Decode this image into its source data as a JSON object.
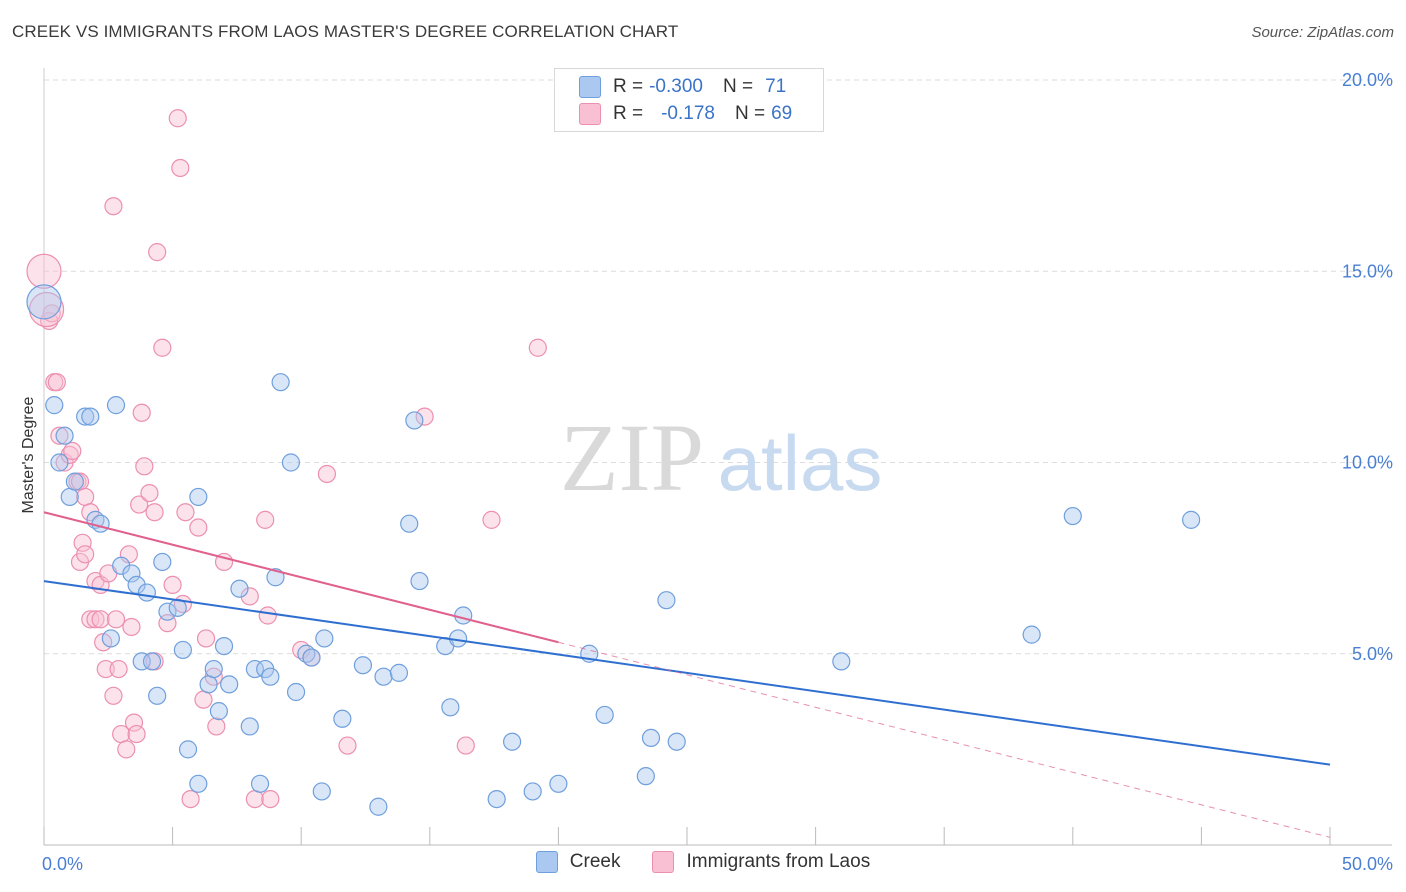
{
  "title": "CREEK VS IMMIGRANTS FROM LAOS MASTER'S DEGREE CORRELATION CHART",
  "source": "Source: ZipAtlas.com",
  "watermark": {
    "zip": "ZIP",
    "atlas": "atlas"
  },
  "legend": {
    "rows": [
      {
        "r_label": "R =",
        "r_value": "-0.300",
        "n_label": "N =",
        "n_value": "71"
      },
      {
        "r_label": "R =",
        "r_value": "-0.178",
        "n_label": "N =",
        "n_value": "69"
      }
    ]
  },
  "colors": {
    "creek_fill": "#aac8f0",
    "creek_stroke": "#6f9fdc",
    "creek_line": "#2f6fd0",
    "laos_fill": "#f8c0d2",
    "laos_stroke": "#ec8fb0",
    "laos_line": "#e0608e",
    "grid": "#dcdcdc",
    "tick_text": "#4a7fd4"
  },
  "chart_data": {
    "type": "scatter",
    "title": "CREEK VS IMMIGRANTS FROM LAOS MASTER'S DEGREE CORRELATION CHART",
    "xlabel": "",
    "ylabel": "Master's Degree",
    "xlim": [
      0,
      50
    ],
    "ylim": [
      0,
      20
    ],
    "x_tick_labels": [
      "0.0%",
      "50.0%"
    ],
    "y_ticks": [
      5,
      10,
      15,
      20
    ],
    "y_tick_labels": [
      "5.0%",
      "10.0%",
      "15.0%",
      "20.0%"
    ],
    "grid": true,
    "legend_position": "top-center",
    "series": [
      {
        "name": "Creek",
        "r": -0.3,
        "n": 71,
        "trend": {
          "x": [
            0,
            50
          ],
          "y": [
            6.9,
            2.1
          ]
        },
        "points": [
          [
            0.0,
            14.2
          ],
          [
            0.4,
            11.5
          ],
          [
            0.6,
            10.0
          ],
          [
            0.8,
            10.7
          ],
          [
            1.0,
            9.1
          ],
          [
            1.2,
            9.5
          ],
          [
            1.6,
            11.2
          ],
          [
            1.8,
            11.2
          ],
          [
            2.0,
            8.5
          ],
          [
            2.2,
            8.4
          ],
          [
            2.6,
            5.4
          ],
          [
            2.8,
            11.5
          ],
          [
            3.0,
            7.3
          ],
          [
            3.4,
            7.1
          ],
          [
            3.6,
            6.8
          ],
          [
            3.8,
            4.8
          ],
          [
            4.0,
            6.6
          ],
          [
            4.2,
            4.8
          ],
          [
            4.4,
            3.9
          ],
          [
            4.6,
            7.4
          ],
          [
            4.8,
            6.1
          ],
          [
            5.2,
            6.2
          ],
          [
            5.4,
            5.1
          ],
          [
            5.6,
            2.5
          ],
          [
            6.0,
            1.6
          ],
          [
            6.0,
            9.1
          ],
          [
            6.4,
            4.2
          ],
          [
            6.6,
            4.6
          ],
          [
            6.8,
            3.5
          ],
          [
            7.0,
            5.2
          ],
          [
            7.2,
            4.2
          ],
          [
            7.6,
            6.7
          ],
          [
            8.0,
            3.1
          ],
          [
            8.2,
            4.6
          ],
          [
            8.4,
            1.6
          ],
          [
            8.6,
            4.6
          ],
          [
            8.8,
            4.4
          ],
          [
            9.0,
            7.0
          ],
          [
            9.2,
            12.1
          ],
          [
            9.6,
            10.0
          ],
          [
            9.8,
            4.0
          ],
          [
            10.2,
            5.0
          ],
          [
            10.4,
            4.9
          ],
          [
            10.8,
            1.4
          ],
          [
            10.9,
            5.4
          ],
          [
            11.6,
            3.3
          ],
          [
            12.4,
            4.7
          ],
          [
            13.0,
            1.0
          ],
          [
            13.2,
            4.4
          ],
          [
            13.8,
            4.5
          ],
          [
            14.2,
            8.4
          ],
          [
            14.4,
            11.1
          ],
          [
            14.6,
            6.9
          ],
          [
            15.6,
            5.2
          ],
          [
            15.8,
            3.6
          ],
          [
            16.1,
            5.4
          ],
          [
            16.3,
            6.0
          ],
          [
            17.6,
            1.2
          ],
          [
            18.2,
            2.7
          ],
          [
            19.0,
            1.4
          ],
          [
            20.0,
            1.6
          ],
          [
            21.2,
            5.0
          ],
          [
            21.8,
            3.4
          ],
          [
            23.4,
            1.8
          ],
          [
            23.6,
            2.8
          ],
          [
            24.2,
            6.4
          ],
          [
            24.6,
            2.7
          ],
          [
            31.0,
            4.8
          ],
          [
            38.4,
            5.5
          ],
          [
            40.0,
            8.6
          ],
          [
            44.6,
            8.5
          ]
        ]
      },
      {
        "name": "Immigrants from Laos",
        "r": -0.178,
        "n": 69,
        "trend": {
          "x": [
            0,
            20
          ],
          "y": [
            8.7,
            5.3
          ]
        },
        "trend_extension": {
          "x": [
            20,
            50
          ],
          "y": [
            5.3,
            0.2
          ]
        },
        "points": [
          [
            0.0,
            15.0
          ],
          [
            0.2,
            13.7
          ],
          [
            0.3,
            13.9
          ],
          [
            0.4,
            12.1
          ],
          [
            0.5,
            12.1
          ],
          [
            0.6,
            10.7
          ],
          [
            0.8,
            10.0
          ],
          [
            1.0,
            10.2
          ],
          [
            1.1,
            10.3
          ],
          [
            1.3,
            9.5
          ],
          [
            1.4,
            9.5
          ],
          [
            1.6,
            9.1
          ],
          [
            1.8,
            8.7
          ],
          [
            1.4,
            7.4
          ],
          [
            1.5,
            7.9
          ],
          [
            1.6,
            7.6
          ],
          [
            1.8,
            5.9
          ],
          [
            2.0,
            5.9
          ],
          [
            2.0,
            6.9
          ],
          [
            2.2,
            5.9
          ],
          [
            2.2,
            6.8
          ],
          [
            2.3,
            5.3
          ],
          [
            2.4,
            4.6
          ],
          [
            2.5,
            7.1
          ],
          [
            2.7,
            3.9
          ],
          [
            2.8,
            5.9
          ],
          [
            2.9,
            4.6
          ],
          [
            3.0,
            2.9
          ],
          [
            3.2,
            2.5
          ],
          [
            3.3,
            7.6
          ],
          [
            3.4,
            5.7
          ],
          [
            3.5,
            3.2
          ],
          [
            3.6,
            2.9
          ],
          [
            3.7,
            8.9
          ],
          [
            3.8,
            11.3
          ],
          [
            3.9,
            9.9
          ],
          [
            4.1,
            9.2
          ],
          [
            4.3,
            8.7
          ],
          [
            4.3,
            4.8
          ],
          [
            4.4,
            15.5
          ],
          [
            4.6,
            13.0
          ],
          [
            4.8,
            5.8
          ],
          [
            5.0,
            6.8
          ],
          [
            5.2,
            19.0
          ],
          [
            5.3,
            17.7
          ],
          [
            5.4,
            6.3
          ],
          [
            5.5,
            8.7
          ],
          [
            5.7,
            1.2
          ],
          [
            6.0,
            8.3
          ],
          [
            6.2,
            3.8
          ],
          [
            6.3,
            5.4
          ],
          [
            6.6,
            4.4
          ],
          [
            6.7,
            3.1
          ],
          [
            7.0,
            7.4
          ],
          [
            2.7,
            16.7
          ],
          [
            8.0,
            6.5
          ],
          [
            8.2,
            1.2
          ],
          [
            8.6,
            8.5
          ],
          [
            8.8,
            1.2
          ],
          [
            8.7,
            6.0
          ],
          [
            10.0,
            5.1
          ],
          [
            10.4,
            4.9
          ],
          [
            11.0,
            9.7
          ],
          [
            11.8,
            2.6
          ],
          [
            14.8,
            11.2
          ],
          [
            16.4,
            2.6
          ],
          [
            17.4,
            8.5
          ],
          [
            19.2,
            13.0
          ],
          [
            0.1,
            14.0
          ]
        ]
      }
    ]
  }
}
